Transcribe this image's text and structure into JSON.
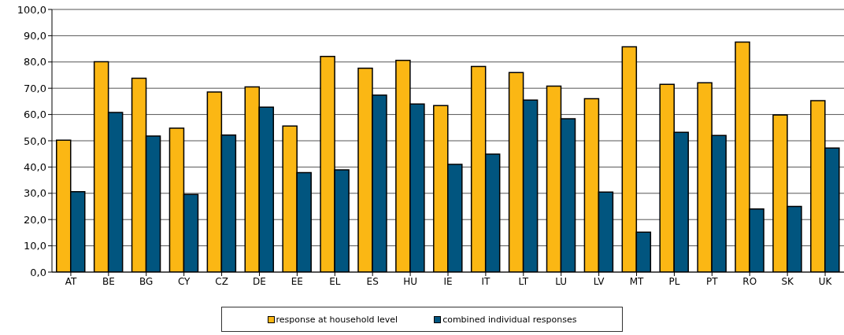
{
  "chart_data": {
    "type": "bar",
    "categories": [
      "AT",
      "BE",
      "BG",
      "CY",
      "CZ",
      "DE",
      "EE",
      "EL",
      "ES",
      "HU",
      "IE",
      "IT",
      "LT",
      "LU",
      "LV",
      "MT",
      "PL",
      "PT",
      "RO",
      "SK",
      "UK"
    ],
    "series": [
      {
        "name": "response at household level",
        "color": "#fbb714",
        "values": [
          50.2,
          80.1,
          73.8,
          54.8,
          68.6,
          70.5,
          55.6,
          82.1,
          77.6,
          80.6,
          63.4,
          78.3,
          76.0,
          70.8,
          66.0,
          85.8,
          71.5,
          72.1,
          87.6,
          59.8,
          65.3
        ]
      },
      {
        "name": "combined individual responses",
        "color": "#01557f",
        "values": [
          30.6,
          60.8,
          51.8,
          29.6,
          52.2,
          62.8,
          37.9,
          38.9,
          67.4,
          64.0,
          41.0,
          44.9,
          65.5,
          58.4,
          30.5,
          15.2,
          53.2,
          52.0,
          24.0,
          25.0,
          47.2
        ]
      }
    ],
    "ylim": [
      0,
      100
    ],
    "yticks": [
      {
        "value": 0,
        "label": "0,0"
      },
      {
        "value": 10,
        "label": "10,0"
      },
      {
        "value": 20,
        "label": "20,0"
      },
      {
        "value": 30,
        "label": "30,0"
      },
      {
        "value": 40,
        "label": "40,0"
      },
      {
        "value": 50,
        "label": "50,0"
      },
      {
        "value": 60,
        "label": "60,0"
      },
      {
        "value": 70,
        "label": "70,0"
      },
      {
        "value": 80,
        "label": "80,0"
      },
      {
        "value": 90,
        "label": "90,0"
      },
      {
        "value": 100,
        "label": "100,0"
      }
    ],
    "grid": "y",
    "legend": "bottom"
  }
}
